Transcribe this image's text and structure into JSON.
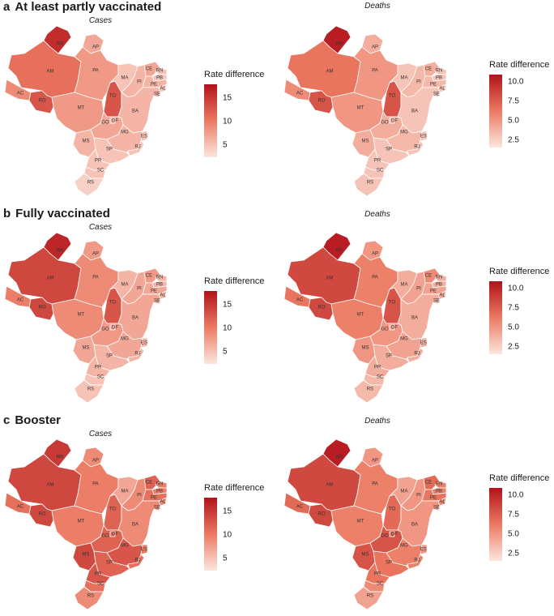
{
  "panels": [
    {
      "letter": "a",
      "title": "At least partly vaccinated",
      "maps": [
        {
          "subtitle": "Cases",
          "legend": {
            "title": "Rate difference",
            "min": 2.5,
            "max": 18,
            "ticks": [
              5,
              10,
              15
            ]
          },
          "values": {
            "RR": 16,
            "AP": 7,
            "AM": 11,
            "PA": 8,
            "AC": 9,
            "RO": 13,
            "MT": 8,
            "TO": 13,
            "MA": 5,
            "PI": 6,
            "CE": 7,
            "RN": 5,
            "PB": 5,
            "PE": 6,
            "AL": 5,
            "SE": 5,
            "BA": 6,
            "GO": 7,
            "DF": 6,
            "MG": 6,
            "ES": 5,
            "RJ": 5,
            "MS": 6,
            "SP": 5,
            "PR": 5,
            "SC": 5,
            "RS": 4
          }
        },
        {
          "subtitle": "Deaths",
          "legend": {
            "title": "Rate difference",
            "min": 1.5,
            "max": 11,
            "ticks": [
              2.5,
              5.0,
              7.5,
              10.0
            ]
          },
          "values": {
            "RR": 10.5,
            "AP": 4,
            "AM": 6.5,
            "PA": 5,
            "AC": 5.5,
            "RO": 8,
            "MT": 5,
            "TO": 8,
            "MA": 3,
            "PI": 3.5,
            "CE": 4,
            "RN": 3,
            "PB": 3,
            "PE": 3.5,
            "AL": 3,
            "SE": 3,
            "BA": 3,
            "GO": 4,
            "DF": 3.5,
            "MG": 3.5,
            "ES": 3,
            "RJ": 3,
            "MS": 4,
            "SP": 3,
            "PR": 3,
            "SC": 3,
            "RS": 3
          }
        }
      ]
    },
    {
      "letter": "b",
      "title": "Fully vaccinated",
      "maps": [
        {
          "subtitle": "Cases",
          "legend": {
            "title": "Rate difference",
            "min": 2.5,
            "max": 18,
            "ticks": [
              5,
              10,
              15
            ]
          },
          "values": {
            "RR": 16.5,
            "AP": 8,
            "AM": 14,
            "PA": 9,
            "AC": 10,
            "RO": 14,
            "MT": 9,
            "TO": 13,
            "MA": 6,
            "PI": 7,
            "CE": 8,
            "RN": 6,
            "PB": 6,
            "PE": 7,
            "AL": 6,
            "SE": 6,
            "BA": 7,
            "GO": 8,
            "DF": 7,
            "MG": 7,
            "ES": 6,
            "RJ": 6,
            "MS": 7,
            "SP": 6,
            "PR": 6,
            "SC": 5,
            "RS": 5
          }
        },
        {
          "subtitle": "Deaths",
          "legend": {
            "title": "Rate difference",
            "min": 1.5,
            "max": 11,
            "ticks": [
              2.5,
              5.0,
              7.5,
              10.0
            ]
          },
          "values": {
            "RR": 10.5,
            "AP": 5,
            "AM": 8.5,
            "PA": 6,
            "AC": 6.5,
            "RO": 8.5,
            "MT": 6,
            "TO": 8,
            "MA": 4,
            "PI": 4.5,
            "CE": 5.5,
            "RN": 4,
            "PB": 4,
            "PE": 4.5,
            "AL": 4,
            "SE": 4,
            "BA": 4,
            "GO": 5,
            "DF": 4.5,
            "MG": 4.5,
            "ES": 4,
            "RJ": 4,
            "MS": 5,
            "SP": 4,
            "PR": 4,
            "SC": 3.5,
            "RS": 3.5
          }
        }
      ]
    },
    {
      "letter": "c",
      "title": "Booster",
      "maps": [
        {
          "subtitle": "Cases",
          "legend": {
            "title": "Rate difference",
            "min": 2.5,
            "max": 18,
            "ticks": [
              5,
              10,
              15
            ]
          },
          "values": {
            "RR": 15,
            "AP": 9,
            "AM": 14,
            "PA": 10,
            "AC": 11,
            "RO": 14,
            "MT": 10,
            "TO": 12,
            "MA": 7,
            "PI": 9,
            "CE": 12,
            "RN": 10,
            "PB": 10,
            "PE": 11,
            "AL": 9,
            "SE": 9,
            "BA": 9,
            "GO": 12,
            "DF": 11,
            "MG": 13,
            "ES": 10,
            "RJ": 11,
            "MS": 14,
            "SP": 12,
            "PR": 13,
            "SC": 11,
            "RS": 9
          }
        },
        {
          "subtitle": "Deaths",
          "legend": {
            "title": "Rate difference",
            "min": 1.5,
            "max": 11,
            "ticks": [
              2.5,
              5.0,
              7.5,
              10.0
            ]
          },
          "values": {
            "RR": 10.5,
            "AP": 5,
            "AM": 8.5,
            "PA": 6,
            "AC": 7,
            "RO": 8.5,
            "MT": 6,
            "TO": 7,
            "MA": 4.5,
            "PI": 5,
            "CE": 7,
            "RN": 6,
            "PB": 6,
            "PE": 6.5,
            "AL": 5.5,
            "SE": 5.5,
            "BA": 5,
            "GO": 8,
            "DF": 7,
            "MG": 6,
            "ES": 5,
            "RJ": 6,
            "MS": 8,
            "SP": 6.5,
            "PR": 6.5,
            "SC": 5.5,
            "RS": 4.5
          }
        }
      ]
    }
  ],
  "colors": {
    "low": "#fbe6de",
    "mid": "#ec7a62",
    "high": "#b1121b"
  }
}
